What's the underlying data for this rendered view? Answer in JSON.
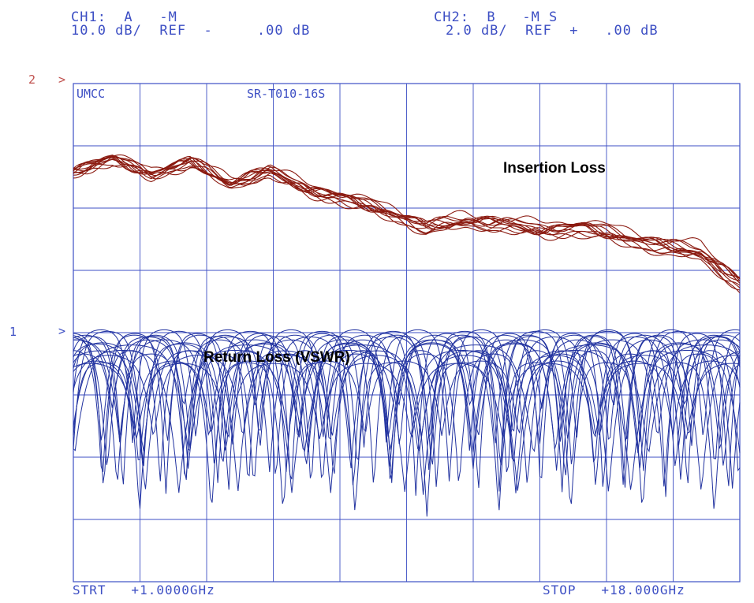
{
  "header": {
    "ch1_line1": "CH1:  A   -M",
    "ch1_line2": "10.0 dB/  REF  -     .00 dB",
    "ch2_line1": "CH2:  B   -M S",
    "ch2_line2": "2.0 dB/  REF  +   .00 dB"
  },
  "plot": {
    "top_left_label": "UMCC",
    "title_label": "SR-T010-16S",
    "marker_ch2_num": "2",
    "marker_ch2_arrow": ">",
    "marker_ch1_num": "1",
    "marker_ch1_arrow": ">"
  },
  "footer": {
    "start": "STRT   +1.0000GHz",
    "stop": "STOP   +18.000GHz"
  },
  "annotations": {
    "insertion_loss": "Insertion Loss",
    "return_loss": "Return Loss (VSWR)"
  },
  "colors": {
    "grid": "#3d4fc4",
    "text": "#3d4fc4",
    "marker": "#c0504d",
    "insertion_loss": "#8b1a10",
    "return_loss": "#2233a0"
  },
  "chart_data": {
    "type": "line",
    "grid": true,
    "divisions": {
      "x": 10,
      "y": 8
    },
    "x_range_ghz": [
      1.0,
      18.0
    ],
    "series": [
      {
        "key": "insertion_loss",
        "name": "Insertion Loss",
        "y_scale_db_per_div": 2.0,
        "reference_db": 0.0,
        "trace_count": 12,
        "x": [
          1,
          2,
          3,
          4,
          5,
          6,
          7,
          8,
          9,
          10,
          11,
          12,
          13,
          14,
          15,
          16,
          17,
          18
        ],
        "y": [
          -1.0,
          -0.6,
          -1.1,
          -0.7,
          -1.4,
          -1.0,
          -1.6,
          -1.9,
          -2.3,
          -2.8,
          -2.6,
          -2.7,
          -2.9,
          -2.8,
          -3.1,
          -3.4,
          -3.6,
          -4.6
        ]
      },
      {
        "key": "return_loss",
        "name": "Return Loss (VSWR)",
        "y_scale_db_per_div": 10.0,
        "reference_db": 0.0,
        "trace_count": 20,
        "x": [
          1,
          2,
          3,
          4,
          5,
          6,
          7,
          8,
          9,
          10,
          11,
          12,
          13,
          14,
          15,
          16,
          17,
          18
        ],
        "y": [
          -28,
          -10,
          -20,
          -12,
          -18,
          -13,
          -22,
          -15,
          -14,
          -17,
          -13,
          -12,
          -16,
          -14,
          -13,
          -15,
          -14,
          -12
        ]
      }
    ]
  }
}
